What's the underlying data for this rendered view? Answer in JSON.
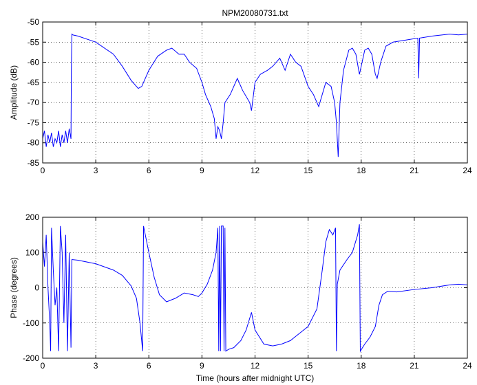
{
  "chart_data": [
    {
      "type": "line",
      "title": "NPM20080731.txt",
      "ylabel": "Amplitude (dB)",
      "color": "#0000ff",
      "grid": true,
      "x": [
        0,
        0.1,
        0.2,
        0.3,
        0.4,
        0.5,
        0.6,
        0.7,
        0.8,
        0.9,
        1.0,
        1.1,
        1.2,
        1.3,
        1.4,
        1.5,
        1.6,
        1.62,
        1.65,
        1.7,
        2,
        3,
        4,
        4.5,
        5,
        5.4,
        5.6,
        6,
        6.5,
        7,
        7.3,
        7.7,
        8,
        8.3,
        8.7,
        9,
        9.2,
        9.5,
        9.7,
        9.8,
        9.9,
        10,
        10.1,
        10.2,
        10.3,
        10.6,
        11,
        11.3,
        11.7,
        11.8,
        12,
        12.3,
        12.7,
        13,
        13.4,
        13.7,
        14,
        14.3,
        14.6,
        15,
        15.3,
        15.6,
        16,
        16.3,
        16.5,
        16.6,
        16.7,
        16.8,
        17,
        17.3,
        17.5,
        17.7,
        17.9,
        18,
        18.2,
        18.4,
        18.6,
        18.8,
        18.9,
        19.1,
        19.4,
        19.8,
        20.5,
        21.2,
        21.25,
        21.3,
        22,
        23,
        23.5,
        24
      ],
      "values": [
        -79,
        -77,
        -81,
        -78,
        -80,
        -77.5,
        -81,
        -79,
        -80,
        -77,
        -81,
        -78,
        -80,
        -77,
        -80,
        -76.5,
        -79,
        -62,
        -53,
        -53.2,
        -53.5,
        -55,
        -58,
        -61,
        -64.5,
        -66.5,
        -66,
        -62,
        -58.5,
        -57,
        -56.5,
        -58,
        -58,
        -60,
        -61.5,
        -65,
        -68,
        -71,
        -74,
        -79,
        -76,
        -77,
        -79,
        -75,
        -70,
        -68,
        -64,
        -67,
        -70,
        -72,
        -65,
        -63,
        -62,
        -61,
        -59,
        -62,
        -58,
        -60,
        -61,
        -66,
        -68,
        -71,
        -65,
        -66,
        -70,
        -75,
        -83.5,
        -70,
        -62,
        -57,
        -56.5,
        -58,
        -63,
        -61,
        -57,
        -56.5,
        -58,
        -63,
        -64,
        -60,
        -56,
        -55,
        -54.5,
        -54,
        -64,
        -54,
        -53.5,
        -53,
        -53.2,
        -53
      ],
      "xlim": [
        0,
        24
      ],
      "xticks": [
        0,
        3,
        6,
        9,
        12,
        15,
        18,
        21,
        24
      ],
      "ylim": [
        -85,
        -50
      ],
      "yticks": [
        -85,
        -80,
        -75,
        -70,
        -65,
        -60,
        -55,
        -50
      ]
    },
    {
      "type": "line",
      "xlabel": "Time (hours after midnight UTC)",
      "ylabel": "Phase (degrees)",
      "color": "#0000ff",
      "grid": true,
      "x": [
        0,
        0.1,
        0.2,
        0.3,
        0.4,
        0.45,
        0.5,
        0.6,
        0.7,
        0.8,
        0.9,
        1.0,
        1.1,
        1.2,
        1.3,
        1.4,
        1.5,
        1.6,
        1.65,
        2,
        3,
        4,
        4.5,
        5,
        5.3,
        5.5,
        5.65,
        5.7,
        6,
        6.3,
        6.6,
        7,
        7.5,
        8,
        8.5,
        8.8,
        9,
        9.3,
        9.6,
        9.8,
        9.9,
        9.95,
        10.0,
        10.05,
        10.1,
        10.2,
        10.25,
        10.3,
        10.35,
        10.5,
        10.8,
        11.2,
        11.5,
        11.8,
        12,
        12.5,
        13,
        13.5,
        14,
        14.5,
        15,
        15.5,
        15.8,
        16,
        16.2,
        16.4,
        16.55,
        16.6,
        16.65,
        16.8,
        17.2,
        17.5,
        17.8,
        17.9,
        17.95,
        18.2,
        18.5,
        18.8,
        19,
        19.2,
        19.5,
        20,
        21,
        22,
        23,
        23.5,
        24
      ],
      "values": [
        130,
        60,
        150,
        0,
        -100,
        -180,
        170,
        50,
        -50,
        0,
        -180,
        175,
        100,
        -100,
        150,
        -180,
        100,
        -170,
        80,
        78,
        68,
        50,
        35,
        5,
        -30,
        -100,
        -180,
        175,
        100,
        30,
        -20,
        -40,
        -30,
        -15,
        -20,
        -25,
        -15,
        10,
        50,
        100,
        170,
        -180,
        175,
        -180,
        175,
        175,
        -180,
        170,
        -180,
        -175,
        -170,
        -150,
        -120,
        -70,
        -120,
        -160,
        -165,
        -160,
        -150,
        -130,
        -110,
        -60,
        50,
        130,
        165,
        150,
        170,
        -180,
        10,
        50,
        80,
        100,
        150,
        180,
        -180,
        -160,
        -140,
        -110,
        -50,
        -20,
        -10,
        -12,
        -5,
        0,
        8,
        10,
        8
      ],
      "xlim": [
        0,
        24
      ],
      "xticks": [
        0,
        3,
        6,
        9,
        12,
        15,
        18,
        21,
        24
      ],
      "ylim": [
        -200,
        200
      ],
      "yticks": [
        -200,
        -100,
        0,
        100,
        200
      ]
    }
  ]
}
